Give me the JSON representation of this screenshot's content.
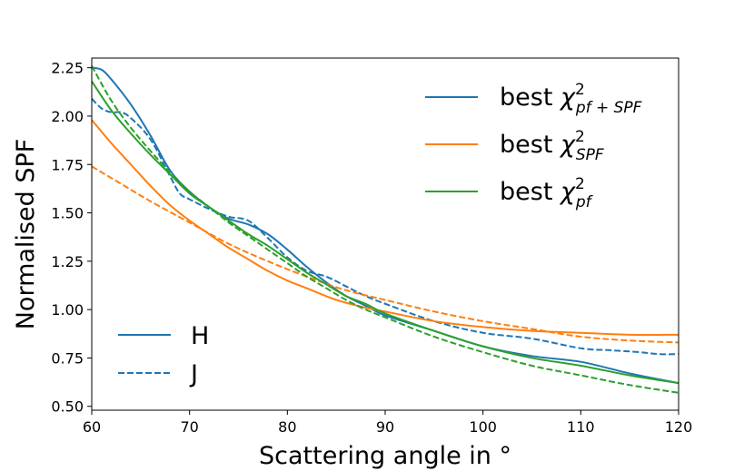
{
  "chart_data": {
    "type": "line",
    "title": "",
    "xlabel": "Scattering angle in °",
    "ylabel": "Normalised SPF",
    "xlim": [
      60,
      120
    ],
    "ylim": [
      0.48,
      2.3
    ],
    "xticks": [
      60,
      70,
      80,
      90,
      100,
      110,
      120
    ],
    "yticks": [
      0.5,
      0.75,
      1.0,
      1.25,
      1.5,
      1.75,
      2.0,
      2.25
    ],
    "xtick_labels": [
      "60",
      "70",
      "80",
      "90",
      "100",
      "110",
      "120"
    ],
    "ytick_labels": [
      "0.50",
      "0.75",
      "1.00",
      "1.25",
      "1.50",
      "1.75",
      "2.00",
      "2.25"
    ],
    "grid": false,
    "legend_models": {
      "placement": "top-right",
      "entries": [
        {
          "prefix": "best ",
          "symbol": "χ",
          "sup": "2",
          "sub": "pf + SPF",
          "color": "#1f77b4"
        },
        {
          "prefix": "best ",
          "symbol": "χ",
          "sup": "2",
          "sub": "SPF",
          "color": "#ff7f0e"
        },
        {
          "prefix": "best ",
          "symbol": "χ",
          "sup": "2",
          "sub": "pf",
          "color": "#2ca02c"
        }
      ]
    },
    "legend_bands": {
      "placement": "bottom-left",
      "entries": [
        {
          "label": "H",
          "style": "solid",
          "color": "#1f77b4"
        },
        {
          "label": "J",
          "style": "dashed",
          "color": "#1f77b4"
        }
      ]
    },
    "series": [
      {
        "name": "best chi2 pf+SPF (H)",
        "color": "#1f77b4",
        "style": "solid",
        "x": [
          60,
          61,
          62,
          64,
          66,
          68,
          70,
          72,
          74,
          76,
          78,
          80,
          82,
          84,
          86,
          88,
          90,
          95,
          100,
          105,
          110,
          115,
          120
        ],
        "y": [
          2.25,
          2.24,
          2.19,
          2.06,
          1.9,
          1.72,
          1.61,
          1.53,
          1.47,
          1.44,
          1.39,
          1.31,
          1.22,
          1.14,
          1.07,
          1.02,
          0.97,
          0.89,
          0.81,
          0.76,
          0.73,
          0.67,
          0.62
        ]
      },
      {
        "name": "best chi2 pf+SPF (J)",
        "color": "#1f77b4",
        "style": "dashed",
        "x": [
          60,
          61,
          62,
          63,
          64,
          66,
          68,
          69,
          70,
          72,
          74,
          76,
          78,
          80,
          82,
          84,
          86,
          88,
          90,
          95,
          100,
          105,
          110,
          113,
          116,
          118,
          120
        ],
        "y": [
          2.09,
          2.04,
          2.02,
          2.02,
          1.99,
          1.88,
          1.69,
          1.6,
          1.57,
          1.52,
          1.48,
          1.46,
          1.37,
          1.27,
          1.2,
          1.17,
          1.12,
          1.07,
          1.03,
          0.94,
          0.88,
          0.85,
          0.8,
          0.79,
          0.78,
          0.77,
          0.77
        ]
      },
      {
        "name": "best chi2 SPF (H)",
        "color": "#ff7f0e",
        "style": "solid",
        "x": [
          60,
          62,
          64,
          66,
          68,
          70,
          72,
          74,
          76,
          78,
          80,
          82,
          85,
          88,
          90,
          95,
          100,
          105,
          110,
          115,
          120
        ],
        "y": [
          1.98,
          1.86,
          1.75,
          1.64,
          1.54,
          1.46,
          1.39,
          1.32,
          1.26,
          1.2,
          1.15,
          1.11,
          1.05,
          1.01,
          0.99,
          0.94,
          0.91,
          0.89,
          0.88,
          0.87,
          0.87
        ]
      },
      {
        "name": "best chi2 SPF (J)",
        "color": "#ff7f0e",
        "style": "dashed",
        "x": [
          60,
          63,
          66,
          70,
          74,
          78,
          82,
          86,
          90,
          95,
          100,
          105,
          110,
          115,
          120
        ],
        "y": [
          1.74,
          1.65,
          1.56,
          1.45,
          1.34,
          1.25,
          1.17,
          1.1,
          1.05,
          0.99,
          0.94,
          0.9,
          0.86,
          0.84,
          0.83
        ]
      },
      {
        "name": "best chi2 pf (H)",
        "color": "#2ca02c",
        "style": "solid",
        "x": [
          60,
          62,
          64,
          66,
          68,
          70,
          72,
          74,
          76,
          78,
          80,
          82,
          84,
          86,
          88,
          90,
          95,
          100,
          105,
          110,
          115,
          120
        ],
        "y": [
          2.18,
          2.03,
          1.91,
          1.8,
          1.7,
          1.6,
          1.53,
          1.46,
          1.39,
          1.33,
          1.26,
          1.19,
          1.13,
          1.07,
          1.03,
          0.98,
          0.89,
          0.81,
          0.75,
          0.71,
          0.66,
          0.62
        ]
      },
      {
        "name": "best chi2 pf (J)",
        "color": "#2ca02c",
        "style": "dashed",
        "x": [
          60,
          62,
          64,
          66,
          68,
          70,
          72,
          74,
          76,
          78,
          80,
          82,
          84,
          86,
          88,
          90,
          95,
          100,
          105,
          110,
          115,
          120
        ],
        "y": [
          2.26,
          2.08,
          1.94,
          1.82,
          1.71,
          1.61,
          1.53,
          1.45,
          1.38,
          1.31,
          1.24,
          1.17,
          1.11,
          1.05,
          1.0,
          0.96,
          0.86,
          0.78,
          0.71,
          0.66,
          0.61,
          0.57
        ]
      }
    ]
  }
}
